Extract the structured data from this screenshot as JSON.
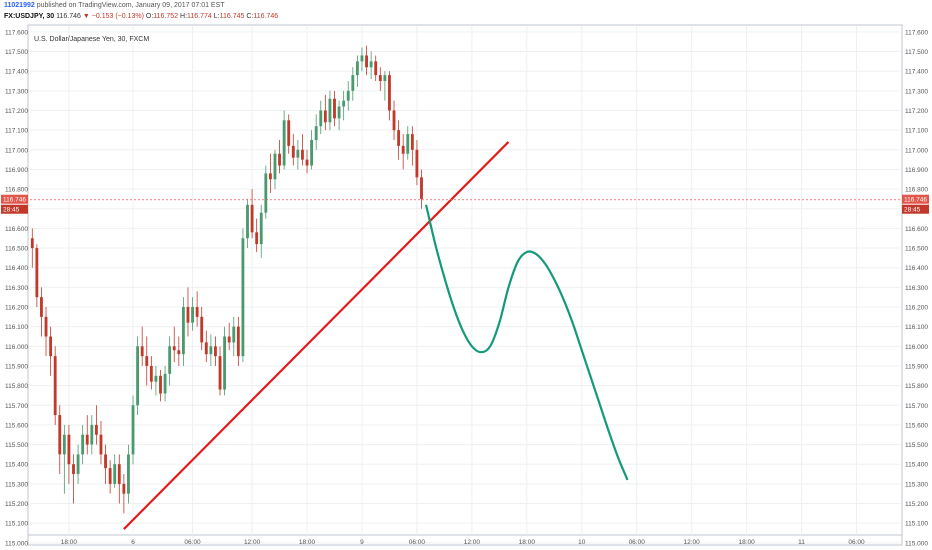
{
  "header": {
    "chart_id": "11021992",
    "published_text": "published on TradingView.com, January 09, 2017 07:01 EST",
    "symbol": "FX:USDJPY, 30",
    "last": "116.746",
    "change_arrow": "▼",
    "change": "−0.153 (−0.13%)",
    "o_label": "O:",
    "o_value": "116.752",
    "h_label": "H:",
    "h_value": "116.774",
    "l_label": "L:",
    "l_value": "116.745",
    "c_label": "C:",
    "c_value": "116.746"
  },
  "chart_data": {
    "type": "candlestick",
    "title": "U.S. Dollar/Japanese Yen, 30, FXCM",
    "xlabel": "",
    "ylabel": "",
    "ylim": [
      115.05,
      117.63
    ],
    "yticks": [
      "115.000",
      "115.100",
      "115.200",
      "115.300",
      "115.400",
      "115.500",
      "115.600",
      "115.700",
      "115.800",
      "115.900",
      "116.000",
      "116.100",
      "116.200",
      "116.300",
      "116.400",
      "116.500",
      "116.600",
      "116.700",
      "116.800",
      "116.900",
      "117.000",
      "117.100",
      "117.200",
      "117.300",
      "117.400",
      "117.500",
      "117.600"
    ],
    "xticks": [
      "18:00",
      "6",
      "06:00",
      "12:00",
      "18:00",
      "9",
      "06:00",
      "12:00",
      "18:00",
      "10",
      "06:00",
      "12:00",
      "18:00",
      "11",
      "06:00"
    ],
    "xtick_bars": [
      8,
      22,
      35,
      48,
      60,
      72,
      84,
      96,
      108,
      120,
      132,
      144,
      156,
      168,
      180
    ],
    "current_price": "116.746",
    "countdown": "28:45",
    "colors": {
      "up": "#4a9a6e",
      "down": "#c0392b",
      "trendline": "#e31b1b",
      "projection": "#14997a",
      "price_line": "#e65c5c"
    },
    "candles": [
      [
        116.55,
        116.6,
        116.4,
        116.5
      ],
      [
        116.5,
        116.52,
        116.2,
        116.25
      ],
      [
        116.25,
        116.3,
        116.05,
        116.15
      ],
      [
        116.15,
        116.2,
        115.95,
        116.05
      ],
      [
        116.05,
        116.1,
        115.85,
        115.95
      ],
      [
        115.95,
        116.0,
        115.6,
        115.65
      ],
      [
        115.65,
        115.7,
        115.35,
        115.45
      ],
      [
        115.45,
        115.6,
        115.25,
        115.55
      ],
      [
        115.55,
        115.6,
        115.3,
        115.4
      ],
      [
        115.4,
        115.45,
        115.2,
        115.35
      ],
      [
        115.35,
        115.5,
        115.3,
        115.45
      ],
      [
        115.45,
        115.6,
        115.4,
        115.55
      ],
      [
        115.55,
        115.65,
        115.45,
        115.5
      ],
      [
        115.5,
        115.65,
        115.45,
        115.6
      ],
      [
        115.6,
        115.7,
        115.5,
        115.55
      ],
      [
        115.55,
        115.62,
        115.4,
        115.45
      ],
      [
        115.45,
        115.5,
        115.3,
        115.38
      ],
      [
        115.38,
        115.42,
        115.25,
        115.3
      ],
      [
        115.3,
        115.45,
        115.28,
        115.4
      ],
      [
        115.4,
        115.45,
        115.2,
        115.3
      ],
      [
        115.3,
        115.35,
        115.15,
        115.25
      ],
      [
        115.25,
        115.5,
        115.2,
        115.45
      ],
      [
        115.45,
        115.75,
        115.4,
        115.7
      ],
      [
        115.7,
        116.05,
        115.65,
        116.0
      ],
      [
        116.0,
        116.1,
        115.9,
        115.95
      ],
      [
        115.95,
        116.05,
        115.8,
        115.9
      ],
      [
        115.9,
        115.95,
        115.78,
        115.82
      ],
      [
        115.82,
        115.9,
        115.75,
        115.85
      ],
      [
        115.85,
        115.88,
        115.72,
        115.76
      ],
      [
        115.76,
        115.9,
        115.72,
        115.86
      ],
      [
        115.86,
        116.05,
        115.8,
        116.0
      ],
      [
        116.0,
        116.1,
        115.92,
        115.98
      ],
      [
        115.98,
        116.05,
        115.9,
        115.96
      ],
      [
        115.96,
        116.25,
        115.9,
        116.2
      ],
      [
        116.2,
        116.3,
        116.05,
        116.12
      ],
      [
        116.12,
        116.25,
        116.08,
        116.2
      ],
      [
        116.2,
        116.28,
        116.1,
        116.15
      ],
      [
        116.15,
        116.2,
        115.98,
        116.02
      ],
      [
        116.02,
        116.08,
        115.92,
        115.96
      ],
      [
        115.96,
        116.06,
        115.9,
        116.0
      ],
      [
        116.0,
        116.05,
        115.9,
        115.95
      ],
      [
        115.95,
        116.0,
        115.75,
        115.78
      ],
      [
        115.78,
        116.1,
        115.75,
        116.05
      ],
      [
        116.05,
        116.12,
        115.98,
        116.02
      ],
      [
        116.02,
        116.15,
        115.95,
        116.1
      ],
      [
        116.1,
        116.15,
        115.9,
        115.95
      ],
      [
        115.95,
        116.6,
        115.92,
        116.55
      ],
      [
        116.55,
        116.75,
        116.5,
        116.72
      ],
      [
        116.72,
        116.8,
        116.55,
        116.58
      ],
      [
        116.58,
        116.65,
        116.48,
        116.52
      ],
      [
        116.52,
        116.72,
        116.45,
        116.68
      ],
      [
        116.68,
        116.92,
        116.65,
        116.88
      ],
      [
        116.88,
        116.98,
        116.78,
        116.85
      ],
      [
        116.85,
        117.0,
        116.8,
        116.98
      ],
      [
        116.98,
        117.05,
        116.88,
        116.92
      ],
      [
        116.92,
        117.2,
        116.9,
        117.15
      ],
      [
        117.15,
        117.18,
        116.98,
        117.02
      ],
      [
        117.02,
        117.08,
        116.92,
        116.96
      ],
      [
        116.96,
        117.05,
        116.9,
        117.0
      ],
      [
        117.0,
        117.08,
        116.92,
        116.95
      ],
      [
        116.95,
        117.0,
        116.88,
        116.92
      ],
      [
        116.92,
        117.1,
        116.9,
        117.05
      ],
      [
        117.05,
        117.18,
        117.0,
        117.12
      ],
      [
        117.12,
        117.25,
        117.08,
        117.2
      ],
      [
        117.2,
        117.28,
        117.1,
        117.14
      ],
      [
        117.14,
        117.3,
        117.1,
        117.26
      ],
      [
        117.26,
        117.3,
        117.12,
        117.16
      ],
      [
        117.16,
        117.25,
        117.1,
        117.22
      ],
      [
        117.22,
        117.3,
        117.15,
        117.25
      ],
      [
        117.25,
        117.35,
        117.2,
        117.3
      ],
      [
        117.3,
        117.42,
        117.25,
        117.38
      ],
      [
        117.38,
        117.48,
        117.32,
        117.45
      ],
      [
        117.45,
        117.52,
        117.4,
        117.48
      ],
      [
        117.48,
        117.53,
        117.38,
        117.42
      ],
      [
        117.42,
        117.5,
        117.36,
        117.45
      ],
      [
        117.45,
        117.48,
        117.35,
        117.38
      ],
      [
        117.38,
        117.42,
        117.3,
        117.35
      ],
      [
        117.35,
        117.4,
        117.25,
        117.38
      ],
      [
        117.38,
        117.4,
        117.15,
        117.2
      ],
      [
        117.2,
        117.25,
        117.05,
        117.1
      ],
      [
        117.1,
        117.15,
        116.95,
        117.02
      ],
      [
        117.02,
        117.08,
        116.9,
        116.98
      ],
      [
        116.98,
        117.12,
        116.95,
        117.08
      ],
      [
        117.08,
        117.12,
        116.92,
        117.0
      ],
      [
        117.0,
        117.05,
        116.82,
        116.86
      ],
      [
        116.86,
        116.9,
        116.7,
        116.75
      ]
    ],
    "trendline": {
      "x0": 20,
      "y0": 115.07,
      "x1": 104,
      "y1": 117.04
    },
    "projection": [
      [
        86,
        116.72
      ],
      [
        88,
        116.52
      ],
      [
        90,
        116.35
      ],
      [
        92,
        116.2
      ],
      [
        94,
        116.08
      ],
      [
        96,
        116.0
      ],
      [
        98,
        115.97
      ],
      [
        100,
        116.0
      ],
      [
        102,
        116.12
      ],
      [
        104,
        116.3
      ],
      [
        106,
        116.43
      ],
      [
        108,
        116.48
      ],
      [
        110,
        116.47
      ],
      [
        112,
        116.42
      ],
      [
        114,
        116.34
      ],
      [
        116,
        116.24
      ],
      [
        118,
        116.12
      ],
      [
        120,
        115.98
      ],
      [
        122,
        115.84
      ],
      [
        124,
        115.7
      ],
      [
        126,
        115.56
      ],
      [
        128,
        115.43
      ],
      [
        130,
        115.32
      ]
    ]
  }
}
